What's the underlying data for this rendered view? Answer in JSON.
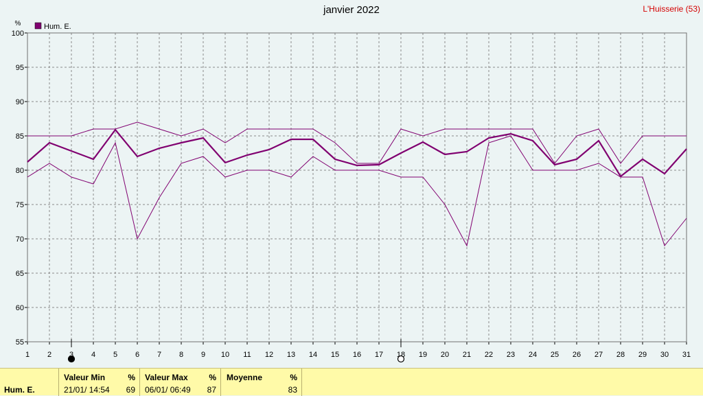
{
  "header": {
    "title": "janvier 2022",
    "station": "L'Huisserie (53)"
  },
  "colors": {
    "series": "#800070",
    "grid": "#8a8a8a",
    "background": "#ecf4f4",
    "footer": "#fffaa8",
    "station": "#d40000"
  },
  "chart_data": {
    "type": "line",
    "ylabel": "%",
    "ylim": [
      55,
      100
    ],
    "yticks": [
      55,
      60,
      65,
      70,
      75,
      80,
      85,
      90,
      95,
      100
    ],
    "x": [
      1,
      2,
      3,
      4,
      5,
      6,
      7,
      8,
      9,
      10,
      11,
      12,
      13,
      14,
      15,
      16,
      17,
      18,
      19,
      20,
      21,
      22,
      23,
      24,
      25,
      26,
      27,
      28,
      29,
      30,
      31
    ],
    "grid": true,
    "legend": {
      "position": "top-left",
      "label": "Hum. E."
    },
    "series": [
      {
        "role": "max",
        "values": [
          85,
          85,
          85,
          86,
          86,
          87,
          86,
          85,
          86,
          84,
          86,
          86,
          86,
          86,
          84,
          81,
          81,
          86,
          85,
          86,
          86,
          86,
          86,
          86,
          81,
          85,
          86,
          81,
          85,
          85,
          85
        ]
      },
      {
        "role": "mean",
        "name": "Hum. E.",
        "values": [
          81.2,
          84,
          82.8,
          81.6,
          85.9,
          82,
          83.2,
          84,
          84.7,
          81.1,
          82.2,
          83,
          84.5,
          84.5,
          81.6,
          80.7,
          80.8,
          82.5,
          84.1,
          82.3,
          82.7,
          84.7,
          85.3,
          84.3,
          80.8,
          81.6,
          84.3,
          79.1,
          81.6,
          79.5,
          83.1
        ]
      },
      {
        "role": "min",
        "values": [
          79,
          81,
          79,
          78,
          84,
          70,
          76,
          81,
          82,
          79,
          80,
          80,
          79,
          82,
          80,
          80,
          80,
          79,
          79,
          75,
          69,
          84,
          85,
          80,
          80,
          80,
          81,
          79,
          79,
          69,
          73
        ]
      }
    ],
    "moon_phases": [
      {
        "day": 3,
        "phase": "new"
      },
      {
        "day": 18,
        "phase": "full"
      }
    ]
  },
  "footer": {
    "row_label": "Hum. E.",
    "min": {
      "header": "Valeur Min",
      "unit": "%",
      "when": "21/01/ 14:54",
      "value": "69"
    },
    "max": {
      "header": "Valeur Max",
      "unit": "%",
      "when": "06/01/ 06:49",
      "value": "87"
    },
    "avg": {
      "header": "Moyenne",
      "unit": "%",
      "value": "83"
    }
  }
}
